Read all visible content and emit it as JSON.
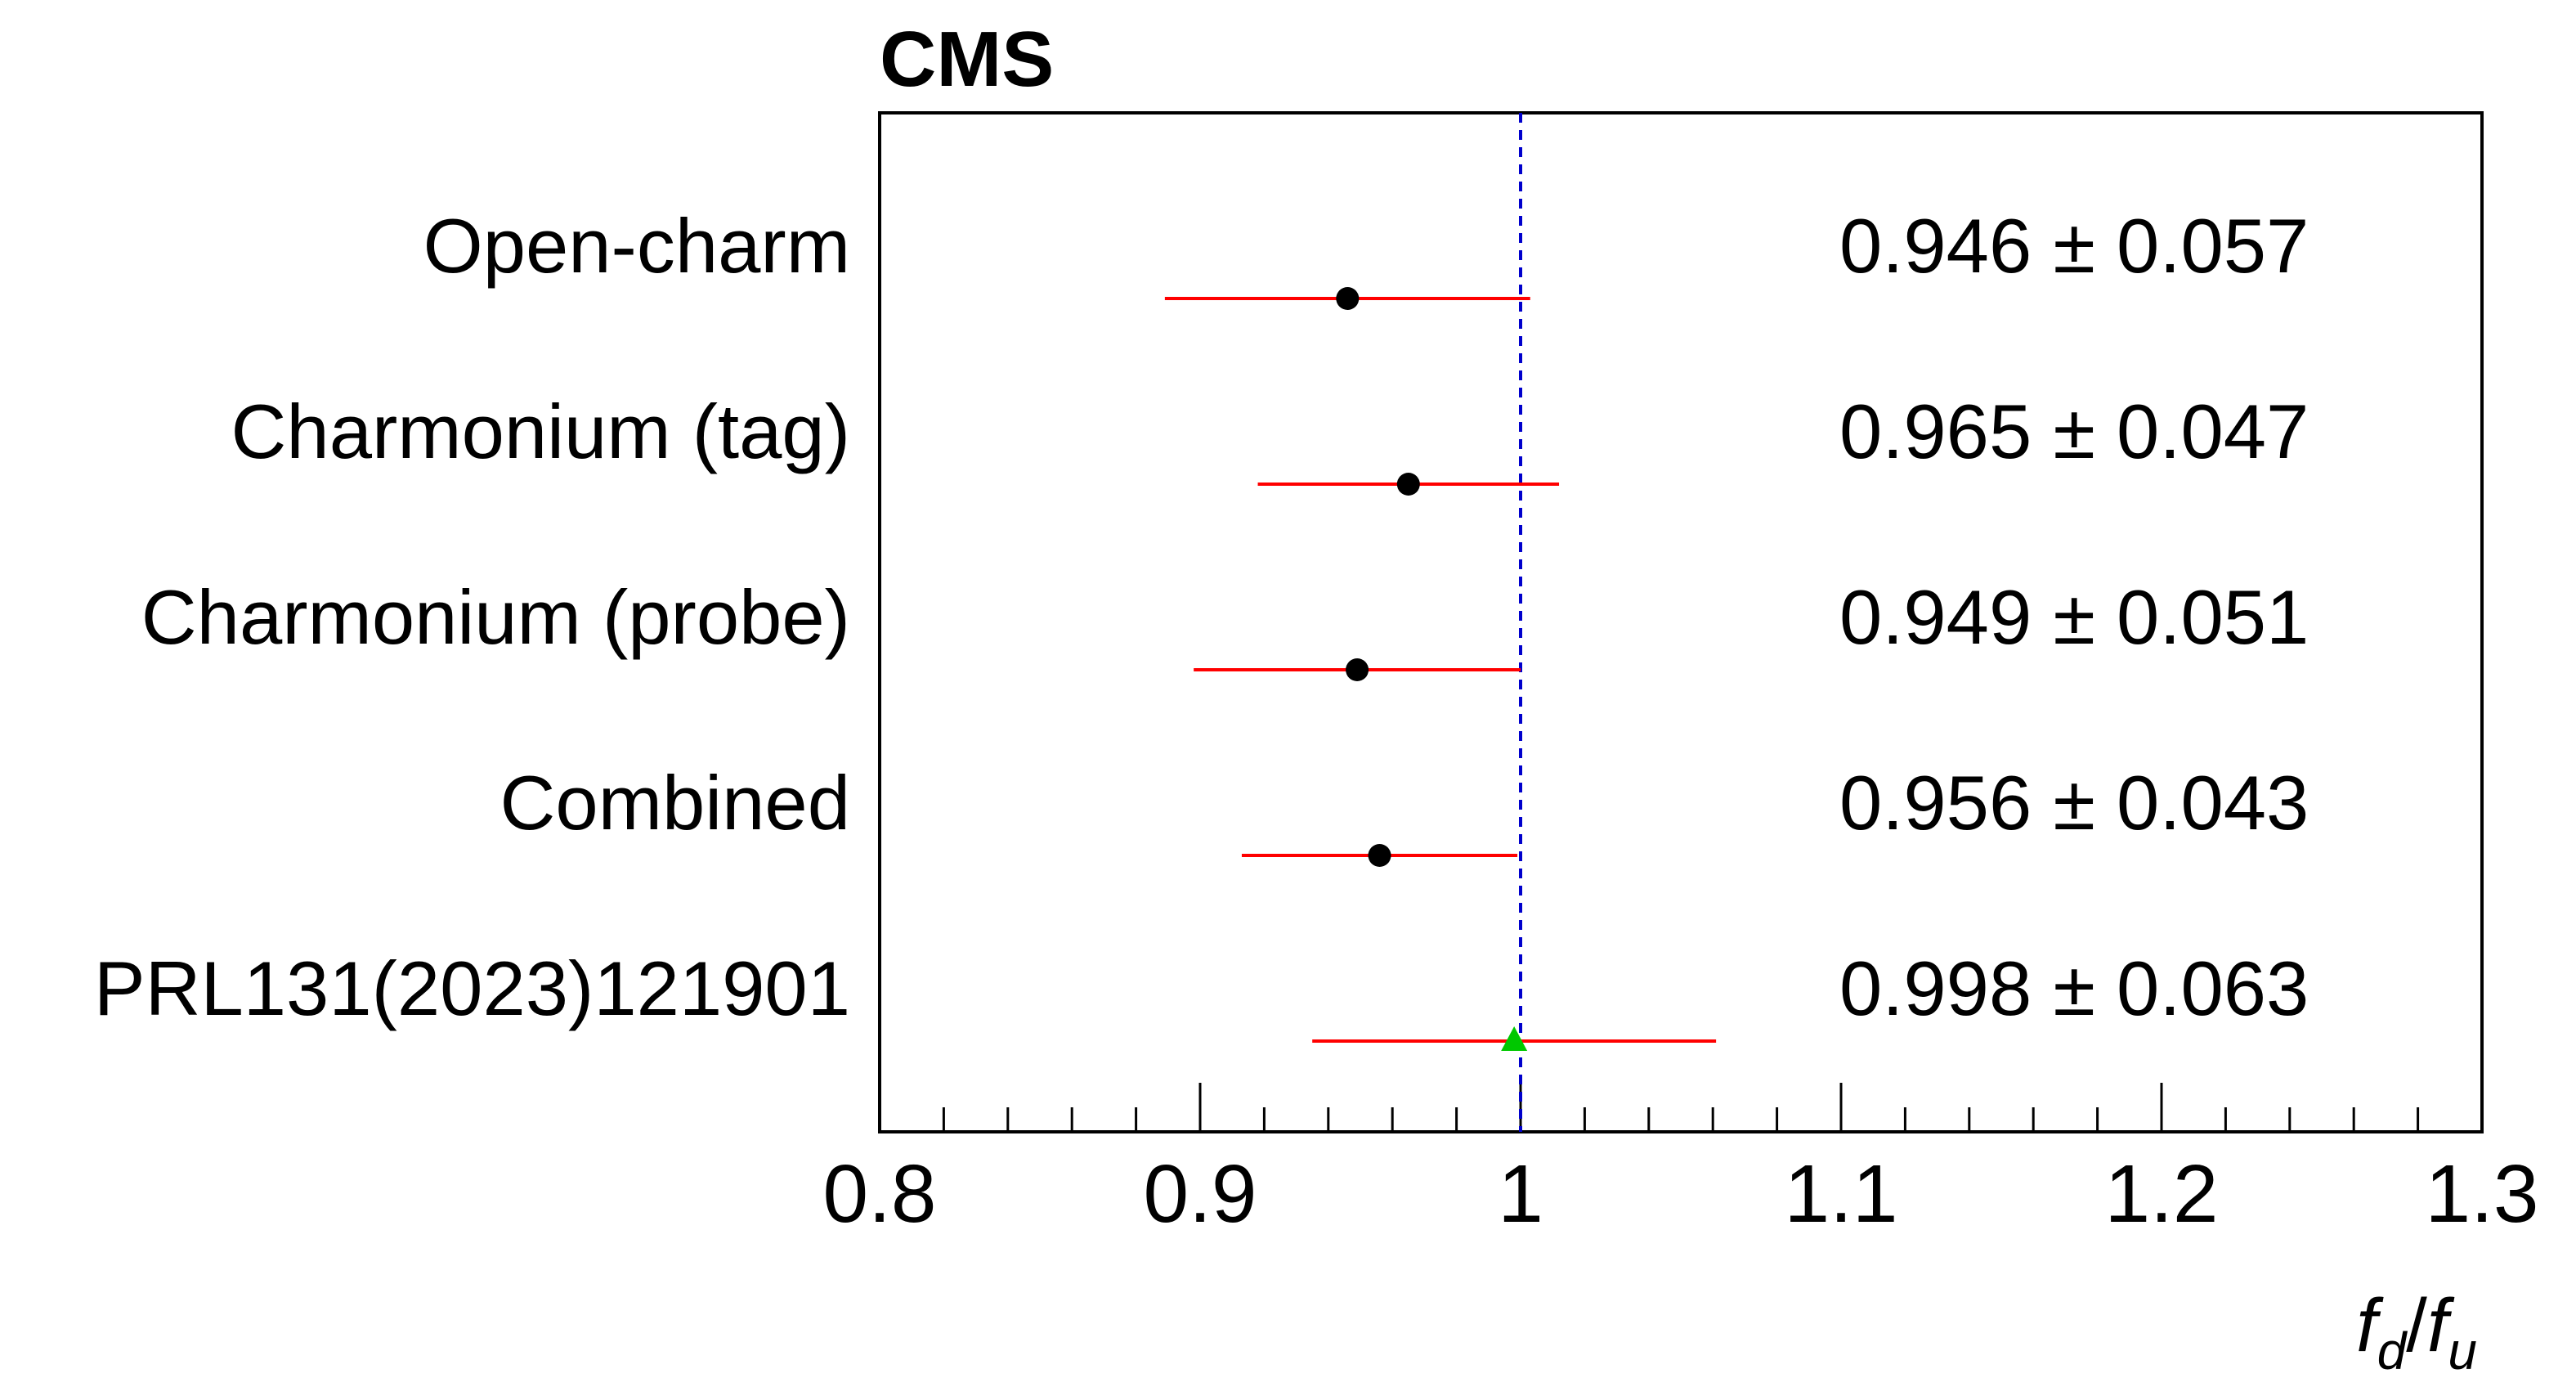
{
  "chart_data": {
    "type": "forest",
    "title": "CMS",
    "xlabel": {
      "main1": "f",
      "sub1": "d",
      "slash": "/",
      "main2": "f",
      "sub2": "u"
    },
    "xlim": [
      0.8,
      1.3
    ],
    "xticks": [
      {
        "value": 0.8,
        "label": "0.8"
      },
      {
        "value": 0.9,
        "label": "0.9"
      },
      {
        "value": 1.0,
        "label": "1"
      },
      {
        "value": 1.1,
        "label": "1.1"
      },
      {
        "value": 1.2,
        "label": "1.2"
      },
      {
        "value": 1.3,
        "label": "1.3"
      }
    ],
    "minor_tick_step": 0.02,
    "reference_line": {
      "value": 1.0,
      "color": "#0000cc",
      "style": "dashed"
    },
    "rows": [
      {
        "label": "Open-charm",
        "value": 0.946,
        "error": 0.057,
        "annotation": "0.946 ± 0.057",
        "marker": "circle",
        "marker_color": "#000000",
        "bar_color": "#ff0000"
      },
      {
        "label": "Charmonium (tag)",
        "value": 0.965,
        "error": 0.047,
        "annotation": "0.965 ± 0.047",
        "marker": "circle",
        "marker_color": "#000000",
        "bar_color": "#ff0000"
      },
      {
        "label": "Charmonium (probe)",
        "value": 0.949,
        "error": 0.051,
        "annotation": "0.949 ± 0.051",
        "marker": "circle",
        "marker_color": "#000000",
        "bar_color": "#ff0000"
      },
      {
        "label": "Combined",
        "value": 0.956,
        "error": 0.043,
        "annotation": "0.956 ± 0.043",
        "marker": "circle",
        "marker_color": "#000000",
        "bar_color": "#ff0000"
      },
      {
        "label": "PRL131(2023)121901",
        "value": 0.998,
        "error": 0.063,
        "annotation": "0.998 ± 0.063",
        "marker": "triangle",
        "marker_color": "#00c800",
        "bar_color": "#ff0000"
      }
    ],
    "grid": false,
    "legend": "none"
  }
}
